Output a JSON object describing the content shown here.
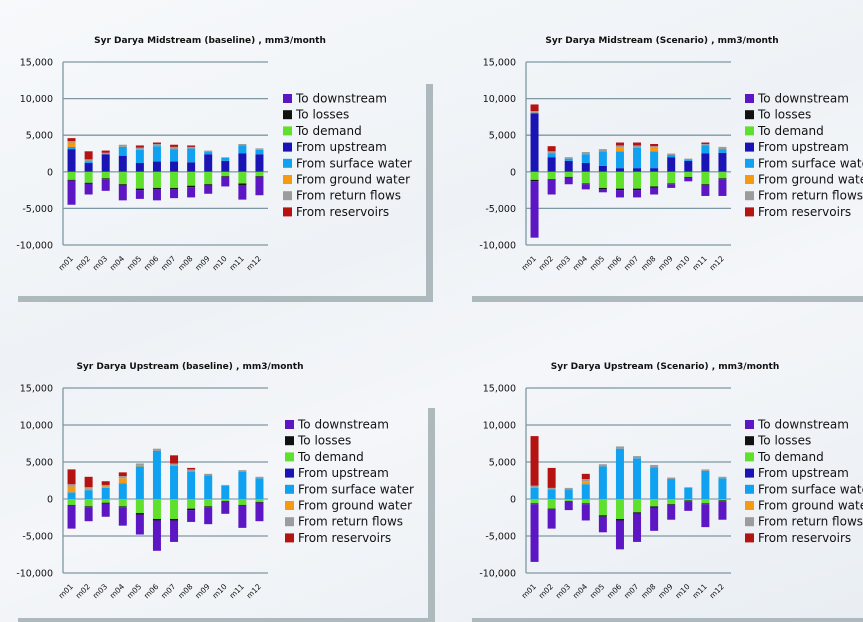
{
  "legend": {
    "items": [
      {
        "label": "To downstream",
        "color": "#5c16c4"
      },
      {
        "label": "To losses",
        "color": "#111111"
      },
      {
        "label": "To demand",
        "color": "#5fe02c"
      },
      {
        "label": "From upstream",
        "color": "#1a14b4"
      },
      {
        "label": "From surface water",
        "color": "#10a2f0"
      },
      {
        "label": "From ground water",
        "color": "#f59a12"
      },
      {
        "label": "From return flows",
        "color": "#9c9c9c"
      },
      {
        "label": "From reservoirs",
        "color": "#b51212"
      }
    ]
  },
  "chart_data": [
    {
      "type": "bar",
      "stacked": true,
      "title": "Syr Darya Midstream (baseline) , mm3/month",
      "categories": [
        "m01",
        "m02",
        "m03",
        "m04",
        "m05",
        "m06",
        "m07",
        "m08",
        "m09",
        "m10",
        "m11",
        "m12"
      ],
      "ylim": [
        -10000,
        15000
      ],
      "yticks": [
        "15,000",
        "10,000",
        "5,000",
        "0",
        "-5,000",
        "-10,000"
      ],
      "legend_position": "right",
      "series": [
        {
          "name": "From upstream",
          "values": [
            3100,
            1200,
            2400,
            2200,
            1200,
            1400,
            1400,
            1300,
            2400,
            1500,
            2500,
            2400
          ]
        },
        {
          "name": "From surface water",
          "values": [
            300,
            200,
            0,
            1200,
            1800,
            2100,
            1700,
            1900,
            300,
            400,
            1100,
            600
          ]
        },
        {
          "name": "From ground water",
          "values": [
            600,
            0,
            0,
            0,
            0,
            0,
            0,
            0,
            0,
            0,
            0,
            0
          ]
        },
        {
          "name": "From return flows",
          "values": [
            200,
            300,
            200,
            300,
            300,
            300,
            300,
            200,
            200,
            100,
            200,
            200
          ]
        },
        {
          "name": "From reservoirs",
          "values": [
            400,
            1100,
            300,
            0,
            300,
            200,
            300,
            200,
            0,
            0,
            0,
            0
          ]
        },
        {
          "name": "To demand",
          "values": [
            -1100,
            -1500,
            -900,
            -1700,
            -2300,
            -2200,
            -2200,
            -1900,
            -1700,
            -600,
            -1600,
            -600
          ]
        },
        {
          "name": "To losses",
          "values": [
            -100,
            -100,
            -100,
            -200,
            -200,
            -200,
            -200,
            -200,
            -200,
            -100,
            -200,
            -100
          ]
        },
        {
          "name": "To downstream",
          "values": [
            -3300,
            -1500,
            -1600,
            -2000,
            -1200,
            -1500,
            -1200,
            -1400,
            -1100,
            -1300,
            -2000,
            -2500
          ]
        }
      ]
    },
    {
      "type": "bar",
      "stacked": true,
      "title": "Syr Darya Midstream (Scenario) , mm3/month",
      "categories": [
        "m01",
        "m02",
        "m03",
        "m04",
        "m05",
        "m06",
        "m07",
        "m08",
        "m09",
        "m10",
        "m11",
        "m12"
      ],
      "ylim": [
        -10000,
        15000
      ],
      "yticks": [
        "15,000",
        "10,000",
        "5,000",
        "0",
        "-5,000",
        "-10,000"
      ],
      "legend_position": "right",
      "series": [
        {
          "name": "From upstream",
          "values": [
            8000,
            2000,
            1500,
            1200,
            800,
            500,
            500,
            500,
            2000,
            1500,
            2500,
            2600
          ]
        },
        {
          "name": "From surface water",
          "values": [
            0,
            500,
            300,
            1200,
            2000,
            2300,
            2800,
            2300,
            300,
            200,
            1100,
            500
          ]
        },
        {
          "name": "From ground water",
          "values": [
            0,
            0,
            0,
            0,
            0,
            500,
            0,
            500,
            0,
            0,
            0,
            0
          ]
        },
        {
          "name": "From return flows",
          "values": [
            300,
            300,
            200,
            300,
            300,
            300,
            300,
            200,
            200,
            100,
            200,
            300
          ]
        },
        {
          "name": "From reservoirs",
          "values": [
            900,
            700,
            0,
            0,
            0,
            400,
            400,
            300,
            0,
            0,
            200,
            0
          ]
        },
        {
          "name": "To demand",
          "values": [
            -1100,
            -1000,
            -700,
            -1600,
            -2200,
            -2300,
            -2300,
            -2000,
            -1600,
            -700,
            -1700,
            -900
          ]
        },
        {
          "name": "To losses",
          "values": [
            -200,
            -100,
            -100,
            -100,
            -200,
            -200,
            -200,
            -200,
            -100,
            -100,
            -100,
            -100
          ]
        },
        {
          "name": "To downstream",
          "values": [
            -7700,
            -2000,
            -900,
            -700,
            -400,
            -1000,
            -1000,
            -900,
            -500,
            -500,
            -1500,
            -2300
          ]
        }
      ]
    },
    {
      "type": "bar",
      "stacked": true,
      "title": "Syr Darya Upstream (baseline) , mm3/month",
      "categories": [
        "m01",
        "m02",
        "m03",
        "m04",
        "m05",
        "m06",
        "m07",
        "m08",
        "m09",
        "m10",
        "m11",
        "m12"
      ],
      "ylim": [
        -10000,
        15000
      ],
      "yticks": [
        "15,000",
        "10,000",
        "5,000",
        "0",
        "-5,000",
        "-10,000"
      ],
      "legend_position": "right",
      "series": [
        {
          "name": "From upstream",
          "values": [
            0,
            0,
            0,
            0,
            0,
            0,
            0,
            0,
            0,
            0,
            0,
            0
          ]
        },
        {
          "name": "From surface water",
          "values": [
            900,
            1200,
            1500,
            2100,
            4400,
            6500,
            4500,
            3700,
            3200,
            1800,
            3700,
            2800
          ]
        },
        {
          "name": "From ground water",
          "values": [
            800,
            200,
            200,
            700,
            100,
            0,
            0,
            0,
            0,
            0,
            0,
            0
          ]
        },
        {
          "name": "From return flows",
          "values": [
            300,
            200,
            200,
            300,
            300,
            300,
            300,
            300,
            200,
            100,
            200,
            200
          ]
        },
        {
          "name": "From reservoirs",
          "values": [
            2000,
            1400,
            500,
            500,
            0,
            0,
            1100,
            200,
            0,
            0,
            0,
            0
          ]
        },
        {
          "name": "To demand",
          "values": [
            -800,
            -1000,
            -500,
            -1000,
            -1900,
            -2700,
            -2700,
            -1300,
            -1000,
            -300,
            -800,
            -400
          ]
        },
        {
          "name": "To losses",
          "values": [
            -100,
            -100,
            -100,
            -100,
            -200,
            -200,
            -200,
            -200,
            -100,
            -100,
            -100,
            -100
          ]
        },
        {
          "name": "To downstream",
          "values": [
            -3100,
            -1900,
            -1800,
            -2500,
            -2700,
            -4100,
            -2900,
            -1600,
            -2300,
            -1600,
            -3000,
            -2500
          ]
        }
      ]
    },
    {
      "type": "bar",
      "stacked": true,
      "title": "Syr Darya Upstream (Scenario) , mm3/month",
      "categories": [
        "m01",
        "m02",
        "m03",
        "m04",
        "m05",
        "m06",
        "m07",
        "m08",
        "m09",
        "m10",
        "m11",
        "m12"
      ],
      "ylim": [
        -10000,
        15000
      ],
      "yticks": [
        "15,000",
        "10,000",
        "5,000",
        "0",
        "-5,000",
        "-10,000"
      ],
      "legend_position": "right",
      "series": [
        {
          "name": "From upstream",
          "values": [
            0,
            0,
            0,
            0,
            0,
            0,
            0,
            0,
            0,
            0,
            0,
            0
          ]
        },
        {
          "name": "From surface water",
          "values": [
            1500,
            1300,
            1300,
            2000,
            4400,
            6800,
            5500,
            4300,
            2700,
            1500,
            3800,
            2800
          ]
        },
        {
          "name": "From ground water",
          "values": [
            0,
            0,
            0,
            400,
            0,
            0,
            0,
            0,
            0,
            0,
            0,
            0
          ]
        },
        {
          "name": "From return flows",
          "values": [
            300,
            200,
            200,
            300,
            300,
            300,
            300,
            300,
            200,
            100,
            200,
            200
          ]
        },
        {
          "name": "From reservoirs",
          "values": [
            6700,
            2700,
            0,
            700,
            0,
            0,
            0,
            0,
            0,
            0,
            0,
            0
          ]
        },
        {
          "name": "To demand",
          "values": [
            -600,
            -1300,
            -300,
            -600,
            -2200,
            -2700,
            -1800,
            -1000,
            -700,
            -200,
            -600,
            -200
          ]
        },
        {
          "name": "To losses",
          "values": [
            -100,
            -100,
            -100,
            -100,
            -200,
            -200,
            -200,
            -200,
            -100,
            -100,
            -100,
            -100
          ]
        },
        {
          "name": "To downstream",
          "values": [
            -7800,
            -2600,
            -1100,
            -2200,
            -2100,
            -3900,
            -3800,
            -3100,
            -2000,
            -1300,
            -3100,
            -2500
          ]
        }
      ]
    }
  ]
}
